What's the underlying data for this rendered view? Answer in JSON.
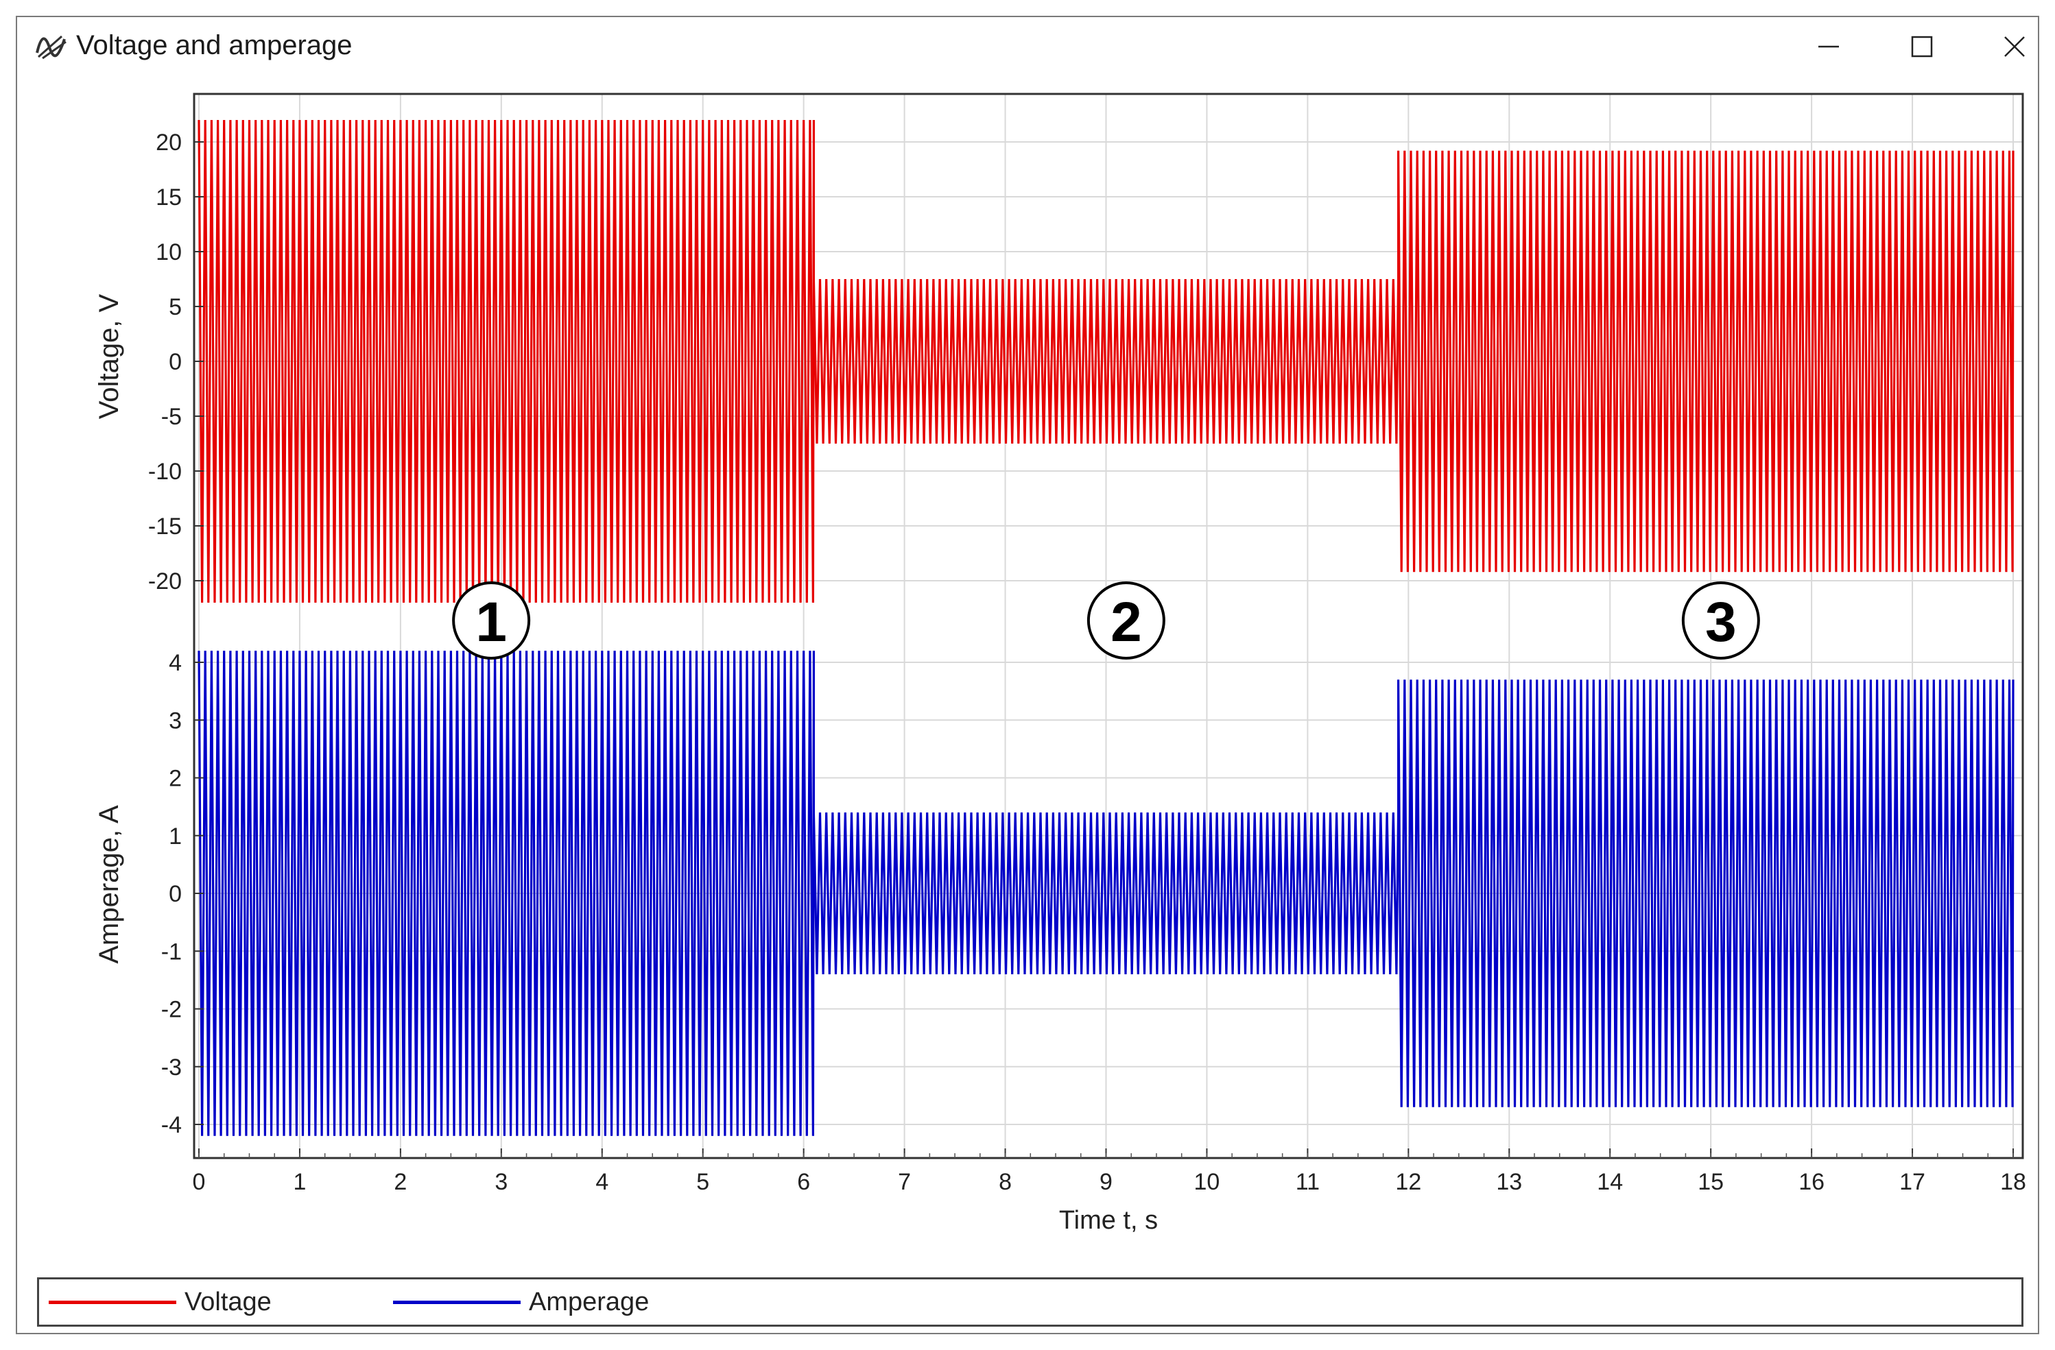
{
  "window": {
    "title": "Voltage and amperage",
    "icon": "chart-waveform-icon",
    "controls": [
      "minimize-icon",
      "maximize-icon",
      "close-icon"
    ]
  },
  "chart_data": [
    {
      "type": "line",
      "title": "",
      "xlabel": "",
      "ylabel": "Voltage, V",
      "xlim": [
        0,
        18
      ],
      "ylim": [
        -23,
        23
      ],
      "y_ticks": [
        20,
        15,
        10,
        5,
        0,
        -5,
        -10,
        -15,
        -20
      ],
      "grid": true,
      "series": [
        {
          "name": "Voltage",
          "color": "#e60000",
          "segments": [
            {
              "t_start": 0,
              "t_end": 6.1,
              "amplitude": 22
            },
            {
              "t_start": 6.1,
              "t_end": 11.9,
              "amplitude": 7.5
            },
            {
              "t_start": 11.9,
              "t_end": 18,
              "amplitude": 19.2
            }
          ]
        }
      ]
    },
    {
      "type": "line",
      "title": "",
      "xlabel": "Time t, s",
      "ylabel": "Amperage, A",
      "xlim": [
        0,
        18
      ],
      "ylim": [
        -4.5,
        4.5
      ],
      "x_ticks": [
        0,
        1,
        2,
        3,
        4,
        5,
        6,
        7,
        8,
        9,
        10,
        11,
        12,
        13,
        14,
        15,
        16,
        17,
        18
      ],
      "y_ticks": [
        4,
        3,
        2,
        1,
        0,
        -1,
        -2,
        -3,
        -4
      ],
      "grid": true,
      "series": [
        {
          "name": "Amperage",
          "color": "#0000c8",
          "segments": [
            {
              "t_start": 0,
              "t_end": 6.1,
              "amplitude": 4.2
            },
            {
              "t_start": 6.1,
              "t_end": 11.9,
              "amplitude": 1.4
            },
            {
              "t_start": 11.9,
              "t_end": 18,
              "amplitude": 3.7
            }
          ]
        }
      ]
    }
  ],
  "region_markers": [
    {
      "label": "1",
      "t": 2.9
    },
    {
      "label": "2",
      "t": 9.2
    },
    {
      "label": "3",
      "t": 15.1
    }
  ],
  "legend": {
    "items": [
      {
        "label": "Voltage",
        "color": "#e60000"
      },
      {
        "label": "Amperage",
        "color": "#0000c8"
      }
    ]
  }
}
